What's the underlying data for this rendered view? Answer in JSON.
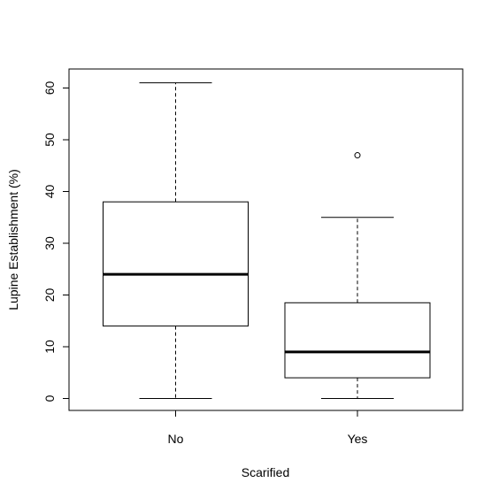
{
  "chart_data": {
    "type": "boxplot",
    "xlabel": "Scarified",
    "ylabel": "Lupine Establishment (%)",
    "categories": [
      "No",
      "Yes"
    ],
    "boxes": [
      {
        "category": "No",
        "whisker_low": 0,
        "q1": 14,
        "median": 24,
        "q3": 38,
        "whisker_high": 61,
        "outliers": []
      },
      {
        "category": "Yes",
        "whisker_low": 0,
        "q1": 4,
        "median": 9,
        "q3": 18.5,
        "whisker_high": 35,
        "outliers": [
          47
        ]
      }
    ],
    "yticks": [
      "0",
      "10",
      "20",
      "30",
      "40",
      "50",
      "60"
    ],
    "ylim": [
      -2.5,
      63.5
    ],
    "grid": false,
    "legend": "none"
  }
}
